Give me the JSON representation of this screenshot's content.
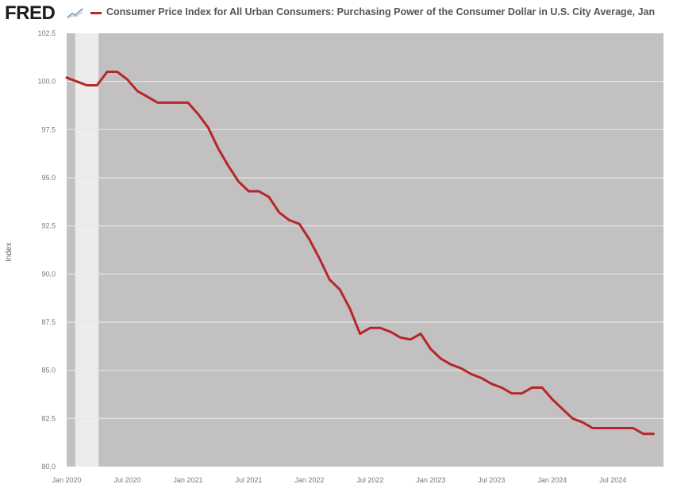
{
  "header": {
    "logo": "FRED",
    "legend_title": "Consumer Price Index for All Urban Consumers: Purchasing Power of the Consumer Dollar in U.S. City Average, Jan"
  },
  "colors": {
    "line": "#b7262a",
    "plot_bg": "#c2c0c1",
    "recession": "#ececec",
    "grid": "#e6e6e6",
    "tick_text": "#777777"
  },
  "chart_data": {
    "type": "line",
    "title": "Consumer Price Index for All Urban Consumers: Purchasing Power of the Consumer Dollar in U.S. City Average, Jan",
    "xlabel": "",
    "ylabel": "Index",
    "ylim": [
      80.0,
      102.5
    ],
    "xlim": [
      "2020-01",
      "2024-12"
    ],
    "yticks": [
      "80.0",
      "82.5",
      "85.0",
      "87.5",
      "90.0",
      "92.5",
      "95.0",
      "97.5",
      "100.0",
      "102.5"
    ],
    "xticks": [
      "Jan 2020",
      "Jul 2020",
      "Jan 2021",
      "Jul 2021",
      "Jan 2022",
      "Jul 2022",
      "Jan 2023",
      "Jul 2023",
      "Jan 2024",
      "Jul 2024"
    ],
    "grid": true,
    "recession_shading": [
      [
        "2020-02",
        "2020-04"
      ]
    ],
    "series": [
      {
        "name": "Consumer Price Index for All Urban Consumers: Purchasing Power of the Consumer Dollar in U.S. City Average",
        "x": [
          "2020-01",
          "2020-02",
          "2020-03",
          "2020-04",
          "2020-05",
          "2020-06",
          "2020-07",
          "2020-08",
          "2020-09",
          "2020-10",
          "2020-11",
          "2020-12",
          "2021-01",
          "2021-02",
          "2021-03",
          "2021-04",
          "2021-05",
          "2021-06",
          "2021-07",
          "2021-08",
          "2021-09",
          "2021-10",
          "2021-11",
          "2021-12",
          "2022-01",
          "2022-02",
          "2022-03",
          "2022-04",
          "2022-05",
          "2022-06",
          "2022-07",
          "2022-08",
          "2022-09",
          "2022-10",
          "2022-11",
          "2022-12",
          "2023-01",
          "2023-02",
          "2023-03",
          "2023-04",
          "2023-05",
          "2023-06",
          "2023-07",
          "2023-08",
          "2023-09",
          "2023-10",
          "2023-11",
          "2023-12",
          "2024-01",
          "2024-02",
          "2024-03",
          "2024-04",
          "2024-05",
          "2024-06",
          "2024-07",
          "2024-08",
          "2024-09",
          "2024-10",
          "2024-11"
        ],
        "values": [
          100.2,
          100.0,
          99.8,
          99.8,
          100.5,
          100.5,
          100.1,
          99.5,
          99.2,
          98.9,
          98.9,
          98.9,
          98.9,
          98.3,
          97.6,
          96.5,
          95.6,
          94.8,
          94.3,
          94.3,
          94.0,
          93.2,
          92.8,
          92.6,
          91.8,
          90.8,
          89.7,
          89.2,
          88.2,
          86.9,
          87.2,
          87.2,
          87.0,
          86.7,
          86.6,
          86.9,
          86.1,
          85.6,
          85.3,
          85.1,
          84.8,
          84.6,
          84.3,
          84.1,
          83.8,
          83.8,
          84.1,
          84.1,
          83.5,
          83.0,
          82.5,
          82.3,
          82.0,
          82.0,
          82.0,
          82.0,
          82.0,
          81.7,
          81.7
        ]
      }
    ]
  }
}
